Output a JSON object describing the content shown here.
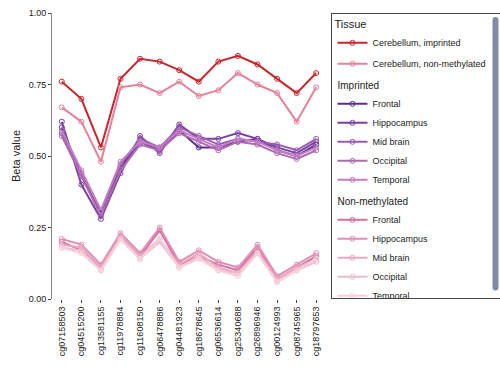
{
  "chart_data": {
    "type": "line",
    "marker": "circle-open",
    "line_style": "solid",
    "grid": false,
    "legend": "right",
    "legend_title": "Tissue",
    "y_label": "Beta value",
    "categories": [
      "cg07158503",
      "cg04515200",
      "cg13581155",
      "cg11978884",
      "cg11608150",
      "cg06478886",
      "cg04481923",
      "cg18678645",
      "cg06536614",
      "cg25340688",
      "cg26896946",
      "cg00124993",
      "cg08745965",
      "cg18797653"
    ],
    "ylim": [
      0,
      1
    ],
    "yticks": [
      {
        "value": 0,
        "label": "0.00"
      },
      {
        "value": 0.25,
        "label": "0.25"
      },
      {
        "value": 0.5,
        "label": "0.50"
      },
      {
        "value": 0.75,
        "label": "0.75"
      },
      {
        "value": 1,
        "label": "1.00"
      }
    ],
    "series": [
      {
        "name": "Cerebellum, imprinted",
        "color": "#c8242b",
        "values": [
          0.76,
          0.7,
          0.53,
          0.77,
          0.84,
          0.83,
          0.8,
          0.76,
          0.83,
          0.85,
          0.82,
          0.77,
          0.72,
          0.79
        ]
      },
      {
        "name": "Cerebellum, non-methylated",
        "color": "#e8809a",
        "values": [
          0.67,
          0.62,
          0.48,
          0.74,
          0.75,
          0.72,
          0.76,
          0.71,
          0.73,
          0.79,
          0.75,
          0.72,
          0.62,
          0.74
        ]
      },
      {
        "name": "Frontal",
        "group": "Imprinted",
        "color": "#5b2d8e",
        "values": [
          0.6,
          0.43,
          0.3,
          0.46,
          0.55,
          0.52,
          0.59,
          0.53,
          0.53,
          0.55,
          0.56,
          0.52,
          0.5,
          0.54
        ]
      },
      {
        "name": "Hippocampus",
        "group": "Imprinted",
        "color": "#7b3fa0",
        "values": [
          0.62,
          0.4,
          0.28,
          0.44,
          0.57,
          0.51,
          0.61,
          0.56,
          0.56,
          0.58,
          0.56,
          0.53,
          0.51,
          0.55
        ]
      },
      {
        "name": "Mid brain",
        "group": "Imprinted",
        "color": "#9b59b6",
        "values": [
          0.58,
          0.44,
          0.31,
          0.47,
          0.56,
          0.53,
          0.6,
          0.57,
          0.54,
          0.56,
          0.55,
          0.54,
          0.52,
          0.56
        ]
      },
      {
        "name": "Occipital",
        "group": "Imprinted",
        "color": "#b06ab3",
        "values": [
          0.57,
          0.43,
          0.29,
          0.45,
          0.54,
          0.52,
          0.58,
          0.55,
          0.52,
          0.55,
          0.54,
          0.51,
          0.49,
          0.52
        ]
      },
      {
        "name": "Temporal",
        "group": "Imprinted",
        "color": "#c27ec0",
        "values": [
          0.59,
          0.45,
          0.31,
          0.48,
          0.55,
          0.53,
          0.59,
          0.56,
          0.53,
          0.56,
          0.55,
          0.52,
          0.5,
          0.53
        ]
      },
      {
        "name": "Frontal",
        "group": "Non-methylated",
        "color": "#d36fa5",
        "values": [
          0.2,
          0.17,
          0.11,
          0.22,
          0.15,
          0.24,
          0.12,
          0.15,
          0.12,
          0.1,
          0.18,
          0.07,
          0.11,
          0.15
        ]
      },
      {
        "name": "Hippocampus",
        "group": "Non-methylated",
        "color": "#e08fb5",
        "values": [
          0.21,
          0.19,
          0.12,
          0.23,
          0.16,
          0.25,
          0.13,
          0.17,
          0.13,
          0.11,
          0.19,
          0.08,
          0.12,
          0.16
        ]
      },
      {
        "name": "Mid brain",
        "group": "Non-methylated",
        "color": "#e9a7c1",
        "values": [
          0.19,
          0.18,
          0.11,
          0.22,
          0.15,
          0.21,
          0.12,
          0.16,
          0.11,
          0.09,
          0.17,
          0.07,
          0.11,
          0.14
        ]
      },
      {
        "name": "Occipital",
        "group": "Non-methylated",
        "color": "#f0bccd",
        "values": [
          0.18,
          0.17,
          0.1,
          0.21,
          0.14,
          0.2,
          0.11,
          0.15,
          0.1,
          0.09,
          0.16,
          0.06,
          0.1,
          0.13
        ]
      },
      {
        "name": "Temporal",
        "group": "Non-methylated",
        "color": "#f5d0d8",
        "values": [
          0.18,
          0.16,
          0.1,
          0.21,
          0.14,
          0.21,
          0.11,
          0.14,
          0.1,
          0.08,
          0.16,
          0.06,
          0.1,
          0.14
        ]
      }
    ]
  }
}
